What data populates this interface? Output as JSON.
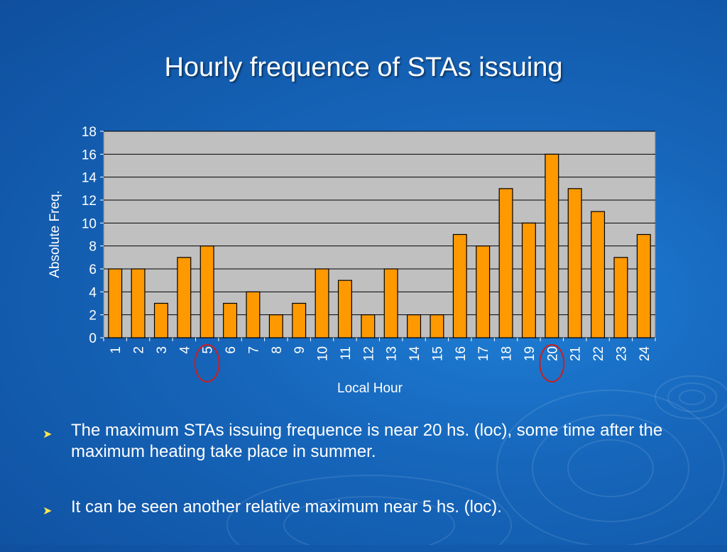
{
  "slide": {
    "title": "Hourly frequence of STAs issuing",
    "bullets": [
      "The maximum STAs issuing frequence is near 20 hs. (loc), some time after the maximum heating take place in summer.",
      " It can be seen another relative maximum near 5 hs. (loc)."
    ],
    "bullet_icon": "arrow-bullet-icon",
    "colors": {
      "background": "#1666bb",
      "bar_fill": "#ff9900",
      "plot_background": "#c0c0c0",
      "highlight_circle": "#cc1e1e",
      "bullet": "#ffe84d"
    }
  },
  "chart_data": {
    "type": "bar",
    "title": "",
    "xlabel": "Local Hour",
    "ylabel": "Absolute Freq.",
    "categories": [
      "1",
      "2",
      "3",
      "4",
      "5",
      "6",
      "7",
      "8",
      "9",
      "10",
      "11",
      "12",
      "13",
      "14",
      "15",
      "16",
      "17",
      "18",
      "19",
      "20",
      "21",
      "22",
      "23",
      "24"
    ],
    "values": [
      6,
      6,
      3,
      7,
      8,
      3,
      4,
      2,
      3,
      6,
      5,
      2,
      6,
      2,
      2,
      9,
      8,
      13,
      10,
      16,
      13,
      11,
      7,
      9
    ],
    "ylim": [
      0,
      18
    ],
    "yticks": [
      0,
      2,
      4,
      6,
      8,
      10,
      12,
      14,
      16,
      18
    ],
    "grid": true,
    "legend": "none",
    "highlighted_categories": [
      "5",
      "20"
    ]
  }
}
